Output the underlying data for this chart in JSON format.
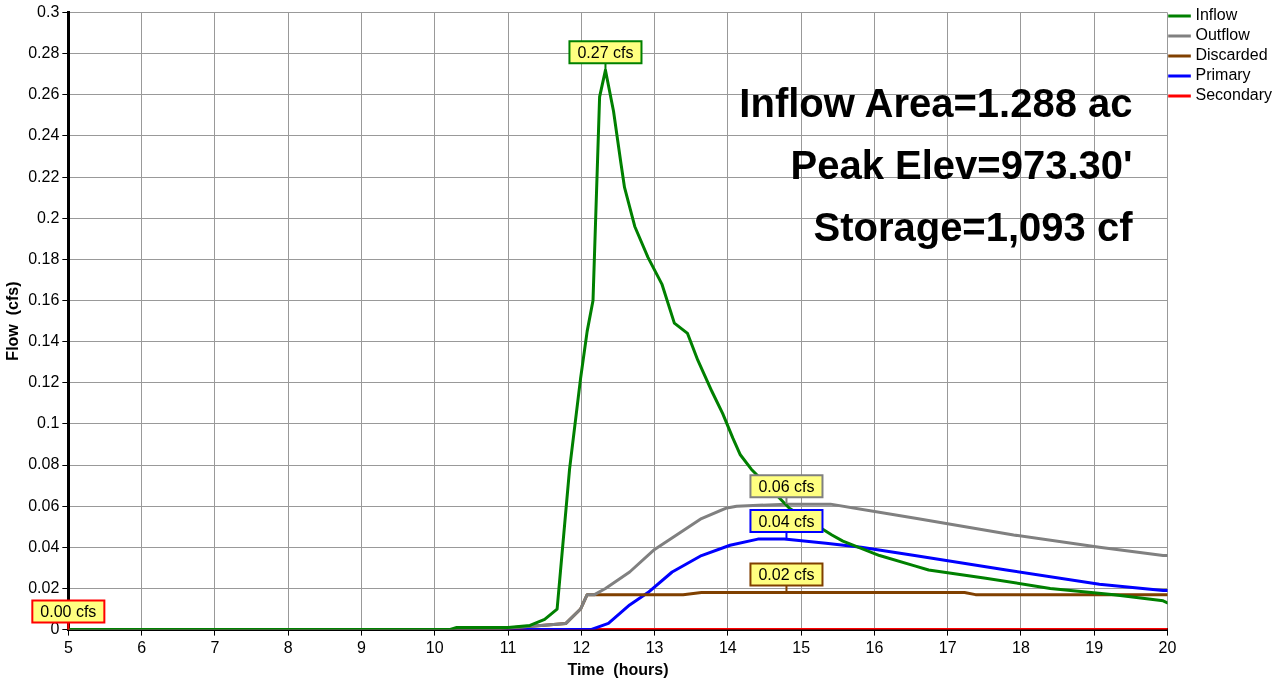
{
  "chart_data": {
    "type": "line",
    "xlabel": "Time  (hours)",
    "ylabel": "Flow  (cfs)",
    "xlim": [
      5,
      20
    ],
    "xticks": [
      5,
      6,
      7,
      8,
      9,
      10,
      11,
      12,
      13,
      14,
      15,
      16,
      17,
      18,
      19,
      20
    ],
    "ylim": [
      0,
      0.3
    ],
    "yticks": [
      0,
      0.02,
      0.04,
      0.06,
      0.08,
      0.1,
      0.12,
      0.14,
      0.16,
      0.18,
      0.2,
      0.22,
      0.24,
      0.26,
      0.28,
      0.3
    ],
    "grid": true,
    "legend": "top right",
    "marker": "none",
    "line_style": "solid",
    "series": [
      {
        "name": "Inflow",
        "color": "#008000",
        "x": [
          5,
          10.2,
          10.3,
          11.0,
          11.3,
          11.5,
          11.67,
          11.84,
          11.99,
          12.08,
          12.16,
          12.25,
          12.33,
          12.44,
          12.54,
          12.59,
          12.73,
          12.91,
          13.1,
          13.27,
          13.45,
          13.59,
          13.78,
          13.93,
          14.07,
          14.17,
          14.32,
          14.84,
          15.42,
          15.57,
          16.07,
          16.55,
          16.74,
          17.52,
          18.4,
          19.27,
          19.94,
          20
        ],
        "values": [
          0,
          0,
          0.001,
          0.001,
          0.002,
          0.005,
          0.01,
          0.078,
          0.122,
          0.145,
          0.16,
          0.259,
          0.272,
          0.252,
          0.227,
          0.215,
          0.196,
          0.181,
          0.168,
          0.149,
          0.144,
          0.131,
          0.116,
          0.105,
          0.093,
          0.085,
          0.078,
          0.059,
          0.046,
          0.043,
          0.036,
          0.031,
          0.029,
          0.025,
          0.02,
          0.017,
          0.014,
          0.013
        ]
      },
      {
        "name": "Outflow",
        "color": "#808080",
        "x": [
          5,
          10.7,
          11.45,
          11.79,
          11.99,
          12.08,
          12.18,
          12.33,
          12.66,
          13.0,
          13.3,
          13.64,
          13.97,
          14.12,
          14.8,
          15.4,
          16.58,
          17.9,
          19.07,
          19.94,
          20
        ],
        "values": [
          0,
          0,
          0.002,
          0.003,
          0.01,
          0.017,
          0.017,
          0.02,
          0.028,
          0.039,
          0.046,
          0.054,
          0.059,
          0.06,
          0.061,
          0.061,
          0.054,
          0.046,
          0.04,
          0.036,
          0.036
        ]
      },
      {
        "name": "Discarded",
        "color": "#804000",
        "x": [
          5,
          10.7,
          11.45,
          11.79,
          11.99,
          12.08,
          12.37,
          13.39,
          13.64,
          17.23,
          17.38,
          20
        ],
        "values": [
          0,
          0,
          0.002,
          0.003,
          0.01,
          0.017,
          0.017,
          0.017,
          0.018,
          0.018,
          0.017,
          0.017
        ]
      },
      {
        "name": "Primary",
        "color": "#0000ff",
        "x": [
          5,
          12.13,
          12.37,
          12.66,
          12.91,
          13.24,
          13.64,
          14.03,
          14.41,
          14.77,
          15.34,
          15.82,
          16.55,
          17.8,
          19.07,
          19.94,
          20
        ],
        "values": [
          0,
          0,
          0.003,
          0.012,
          0.018,
          0.028,
          0.036,
          0.041,
          0.044,
          0.044,
          0.042,
          0.04,
          0.036,
          0.029,
          0.022,
          0.019,
          0.019
        ]
      },
      {
        "name": "Secondary",
        "color": "#ff0000",
        "x": [
          5,
          20
        ],
        "values": [
          0,
          0
        ]
      }
    ],
    "annotations": [
      {
        "text": "0.27 cfs",
        "x": 12.33,
        "y": 0.272
      },
      {
        "text": "0.06 cfs",
        "x": 14.8,
        "y": 0.061
      },
      {
        "text": "0.02 cfs",
        "x": 14.8,
        "y": 0.018
      },
      {
        "text": "0.04 cfs",
        "x": 14.8,
        "y": 0.044
      },
      {
        "text": "0.00 cfs",
        "x": 5,
        "y": 0
      },
      "Inflow Area=1.288 ac",
      "Peak Elev=973.30'",
      "Storage=1,093 cf"
    ]
  }
}
